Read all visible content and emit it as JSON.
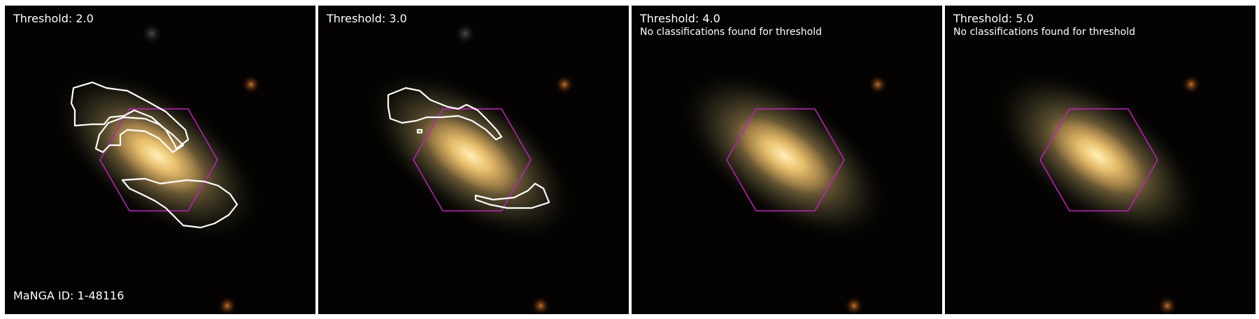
{
  "figure": {
    "manga_id_label": "MaNGA ID: 1-48116"
  },
  "panels": [
    {
      "title": "Threshold: 2.0",
      "note": "",
      "contours": "two"
    },
    {
      "title": "Threshold: 3.0",
      "note": "",
      "contours": "three"
    },
    {
      "title": "Threshold: 4.0",
      "note": "No classifications found for threshold",
      "contours": "none"
    },
    {
      "title": "Threshold: 5.0",
      "note": "No classifications found for threshold",
      "contours": "none"
    }
  ],
  "colors": {
    "background": "#000000",
    "galaxy_core": "#ffd98a",
    "galaxy_halo": "#b79a5a",
    "hexagon": "#c020c0",
    "contour": "#ffffff",
    "text": "#ffffff"
  }
}
